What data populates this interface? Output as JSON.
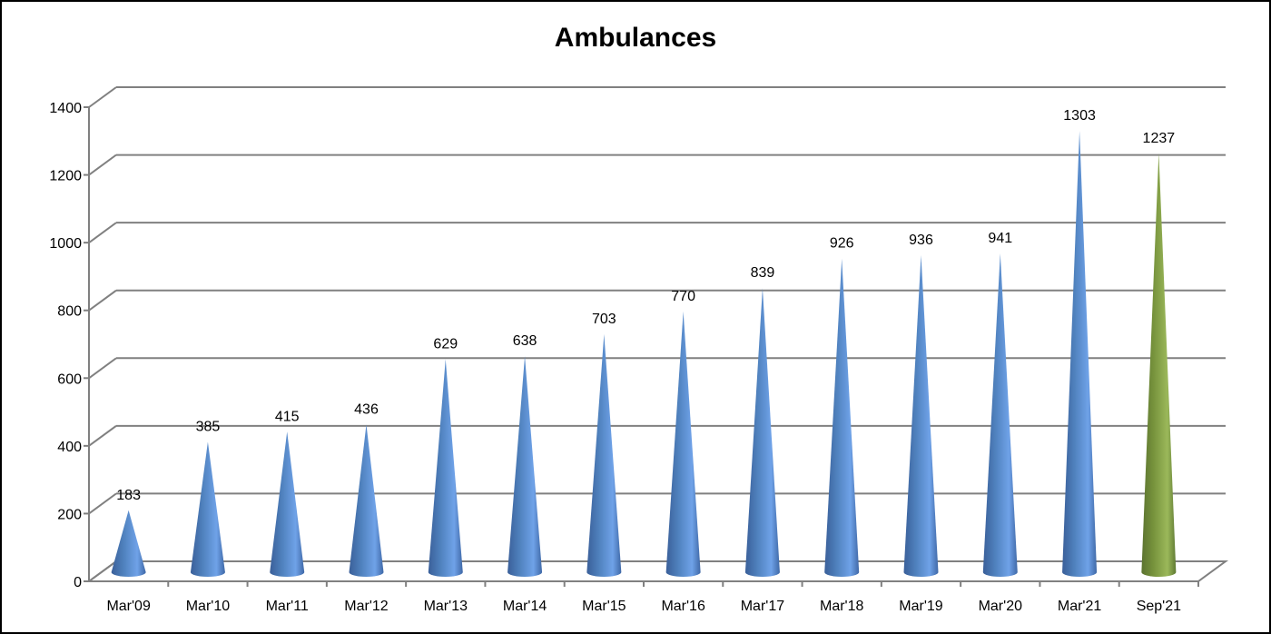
{
  "chart_data": {
    "type": "bar",
    "bar_shape": "cone",
    "title": "Ambulances",
    "xlabel": "",
    "ylabel": "",
    "categories": [
      "Mar'09",
      "Mar'10",
      "Mar'11",
      "Mar'12",
      "Mar'13",
      "Mar'14",
      "Mar'15",
      "Mar'16",
      "Mar'17",
      "Mar'18",
      "Mar'19",
      "Mar'20",
      "Mar'21",
      "Sep'21"
    ],
    "values": [
      183,
      385,
      415,
      436,
      629,
      638,
      703,
      770,
      839,
      926,
      936,
      941,
      1303,
      1237
    ],
    "ylim": [
      0,
      1400
    ],
    "yticks": [
      0,
      200,
      400,
      600,
      800,
      1000,
      1200,
      1400
    ],
    "grid": true,
    "legend": "none",
    "data_labels": true,
    "colors": {
      "default": "#4f81bd",
      "highlight_last": "#77933c"
    }
  }
}
